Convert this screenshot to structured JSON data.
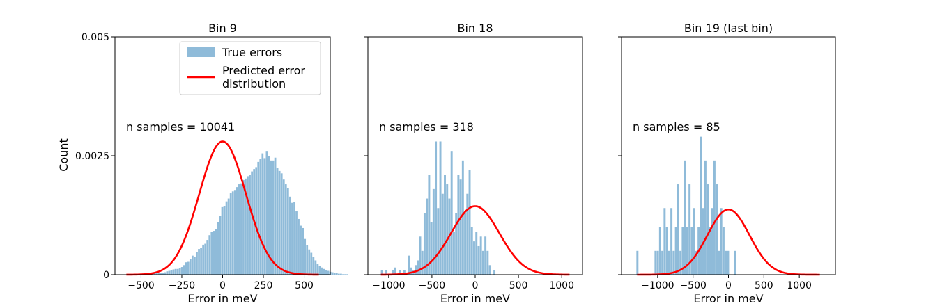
{
  "chart_data": {
    "type": "bar",
    "ylabel": "Count",
    "shared_y": true,
    "ylim": [
      0,
      0.005
    ],
    "ytick_values": [
      0,
      0.0025,
      0.005
    ],
    "ytick_labels": [
      "0",
      "0.0025",
      "0.005"
    ],
    "series_colors": {
      "histogram": "#1f77b4",
      "histogram_alpha": 0.5,
      "curve": "#ff0000"
    },
    "legend": {
      "placement": "top-right of first panel",
      "entries": [
        "True errors",
        "Predicted error distribution"
      ],
      "entry_lines": [
        [
          "True errors"
        ],
        [
          "Predicted error",
          "distribution"
        ]
      ]
    },
    "panels": [
      {
        "title": "Bin 9",
        "xlabel": "Error in meV",
        "annotation": "n samples = 10041",
        "xlim": [
          -660,
          660
        ],
        "xtick_values": [
          -500,
          -250,
          0,
          250,
          500
        ],
        "xtick_labels": [
          "−500",
          "−250",
          "0",
          "250",
          "500"
        ],
        "bin_width": 13,
        "bin_start": -450,
        "hist_values": [
          1e-05,
          2e-05,
          3e-05,
          3e-05,
          3e-05,
          4e-05,
          4e-05,
          5e-05,
          7e-05,
          8e-05,
          9e-05,
          0.00011,
          0.00012,
          0.00012,
          0.00014,
          0.00016,
          0.0002,
          0.00026,
          0.00027,
          0.00033,
          0.0004,
          0.00038,
          0.00048,
          0.00054,
          0.00057,
          0.00063,
          0.00065,
          0.00073,
          0.00083,
          0.0009,
          0.00092,
          0.00095,
          0.00111,
          0.00124,
          0.00142,
          0.00144,
          0.00154,
          0.0016,
          0.00171,
          0.00175,
          0.00178,
          0.00184,
          0.0019,
          0.00192,
          0.00199,
          0.00202,
          0.00207,
          0.0021,
          0.00217,
          0.00222,
          0.00226,
          0.00237,
          0.00243,
          0.00255,
          0.00245,
          0.0026,
          0.0025,
          0.0024,
          0.0024,
          0.00246,
          0.00225,
          0.00218,
          0.00213,
          0.002,
          0.0019,
          0.00182,
          0.00164,
          0.00151,
          0.00153,
          0.00133,
          0.00117,
          0.00103,
          0.00098,
          0.00075,
          0.00062,
          0.00053,
          0.00046,
          0.00038,
          0.0003,
          0.00023,
          0.00018,
          0.00015,
          0.00012,
          0.0001,
          8e-05,
          6e-05,
          5e-05,
          4e-05,
          3e-05,
          2e-05,
          2e-05,
          1e-05,
          1e-05,
          1e-05
        ],
        "curve": {
          "mean": 0,
          "std": 143,
          "peak": 0.0028,
          "x_range": [
            -590,
            590
          ]
        }
      },
      {
        "title": "Bin 18",
        "xlabel": "Error in meV",
        "annotation": "n samples = 318",
        "xlim": [
          -1240,
          1240
        ],
        "xtick_values": [
          -1000,
          -500,
          0,
          500,
          1000
        ],
        "xtick_labels": [
          "−1000",
          "−500",
          "0",
          "500",
          "1000"
        ],
        "bin_width": 26,
        "bin_start": -1090,
        "hist_values": [
          0.0001,
          0,
          0.0001,
          0,
          0,
          0.0001,
          0.00015,
          0,
          0.0001,
          0,
          0.0001,
          0,
          0.0004,
          0.00015,
          0.0001,
          0.0002,
          0.0003,
          0.0008,
          0.0005,
          0.0013,
          0.0016,
          0.0021,
          0.0011,
          0.0018,
          0.0028,
          0.0014,
          0.0028,
          0.0017,
          0.0021,
          0.0019,
          0.0016,
          0.0026,
          0.0009,
          0.0013,
          0.0021,
          0.002,
          0.0024,
          0.0013,
          0.0017,
          0.0022,
          0.001,
          0.0007,
          0.0009,
          0.0006,
          0.0008,
          0.0005,
          0.0008,
          0.0005,
          0.0002,
          0,
          0.0001
        ],
        "curve": {
          "mean": 0,
          "std": 279,
          "peak": 0.00144,
          "x_range": [
            -1090,
            1090
          ]
        }
      },
      {
        "title": "Bin 19 (last bin)",
        "xlabel": "Error in meV",
        "annotation": "n samples = 85",
        "xlim": [
          -1510,
          1510
        ],
        "xtick_values": [
          -1000,
          -500,
          0,
          500,
          1000
        ],
        "xtick_labels": [
          "−1000",
          "−500",
          "0",
          "500",
          "1000"
        ],
        "bin_width": 32,
        "bin_start": -1300,
        "hist_values": [
          0.0005,
          0,
          0,
          0,
          0,
          0,
          0,
          0,
          0.0005,
          0.0005,
          0.001,
          0.0005,
          0.0014,
          0.001,
          0.0005,
          0.0014,
          0.0005,
          0.001,
          0.0019,
          0.0005,
          0.001,
          0.0024,
          0.001,
          0.0019,
          0.001,
          0.0014,
          0.0005,
          0.001,
          0.0029,
          0.0014,
          0.0024,
          0.0019,
          0.001,
          0.0014,
          0.0024,
          0.0019,
          0.0005,
          0.0014,
          0.001,
          0.0005,
          0.0005,
          0,
          0,
          0.0005
        ],
        "curve": {
          "mean": 0,
          "std": 297,
          "peak": 0.00137,
          "x_range": [
            -1290,
            1290
          ]
        }
      }
    ]
  }
}
